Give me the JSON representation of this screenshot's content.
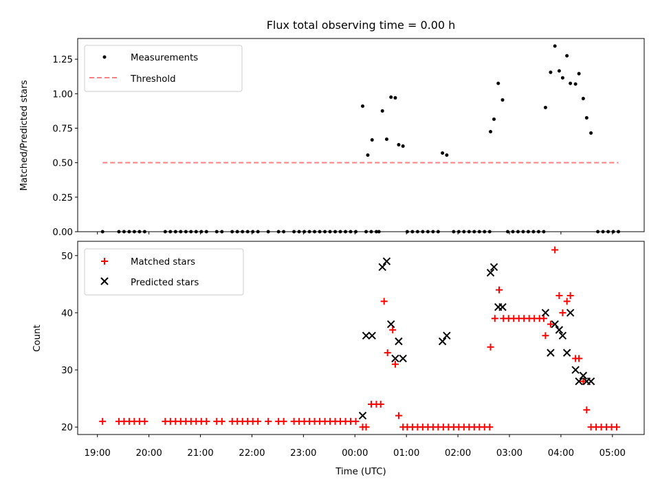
{
  "chart_data": [
    {
      "type": "scatter",
      "title": "Flux total observing time = 0.00 h",
      "xlabel": "",
      "ylabel": "Matched/Predicted stars",
      "ylim": [
        0,
        1.4
      ],
      "yticks": [
        "0.00",
        "0.25",
        "0.50",
        "0.75",
        "1.00",
        "1.25"
      ],
      "legend_position": "top-left",
      "series": [
        {
          "name": "Measurements",
          "marker": "dot",
          "color": "#000000",
          "points": [
            [
              "19:06",
              0
            ],
            [
              "19:25",
              0
            ],
            [
              "19:31",
              0
            ],
            [
              "19:37",
              0
            ],
            [
              "19:43",
              0
            ],
            [
              "19:49",
              0
            ],
            [
              "19:55",
              0
            ],
            [
              "20:19",
              0
            ],
            [
              "20:25",
              0
            ],
            [
              "20:31",
              0
            ],
            [
              "20:37",
              0
            ],
            [
              "20:43",
              0
            ],
            [
              "20:49",
              0
            ],
            [
              "20:55",
              0
            ],
            [
              "21:01",
              0
            ],
            [
              "21:07",
              0
            ],
            [
              "21:19",
              0
            ],
            [
              "21:25",
              0
            ],
            [
              "21:37",
              0
            ],
            [
              "21:43",
              0
            ],
            [
              "21:49",
              0
            ],
            [
              "21:55",
              0
            ],
            [
              "22:01",
              0
            ],
            [
              "22:07",
              0
            ],
            [
              "22:19",
              0
            ],
            [
              "22:31",
              0
            ],
            [
              "22:37",
              0
            ],
            [
              "22:49",
              0
            ],
            [
              "22:55",
              0
            ],
            [
              "23:01",
              0
            ],
            [
              "23:07",
              0
            ],
            [
              "23:13",
              0
            ],
            [
              "23:19",
              0
            ],
            [
              "23:25",
              0
            ],
            [
              "23:31",
              0
            ],
            [
              "23:37",
              0
            ],
            [
              "23:43",
              0
            ],
            [
              "23:49",
              0
            ],
            [
              "23:55",
              0
            ],
            [
              "00:01",
              0
            ],
            [
              "00:09",
              0.91
            ],
            [
              "00:13",
              0
            ],
            [
              "00:15",
              0.555
            ],
            [
              "00:19",
              0
            ],
            [
              "00:20",
              0.665
            ],
            [
              "00:25",
              0
            ],
            [
              "00:28",
              0
            ],
            [
              "00:32",
              0.875
            ],
            [
              "00:37",
              0.67
            ],
            [
              "00:42",
              0.975
            ],
            [
              "00:47",
              0.97
            ],
            [
              "00:51",
              0.63
            ],
            [
              "00:56",
              0.62
            ],
            [
              "01:01",
              0
            ],
            [
              "01:07",
              0
            ],
            [
              "01:13",
              0
            ],
            [
              "01:19",
              0
            ],
            [
              "01:25",
              0
            ],
            [
              "01:31",
              0
            ],
            [
              "01:37",
              0
            ],
            [
              "01:42",
              0.57
            ],
            [
              "01:47",
              0.555
            ],
            [
              "01:55",
              0
            ],
            [
              "02:01",
              0
            ],
            [
              "02:07",
              0
            ],
            [
              "02:13",
              0
            ],
            [
              "02:19",
              0
            ],
            [
              "02:25",
              0
            ],
            [
              "02:31",
              0
            ],
            [
              "02:37",
              0
            ],
            [
              "02:38",
              0.725
            ],
            [
              "02:42",
              0.815
            ],
            [
              "02:47",
              1.075
            ],
            [
              "02:52",
              0.955
            ],
            [
              "02:58",
              0
            ],
            [
              "03:04",
              0
            ],
            [
              "03:10",
              0
            ],
            [
              "03:16",
              0
            ],
            [
              "03:22",
              0
            ],
            [
              "03:28",
              0
            ],
            [
              "03:34",
              0
            ],
            [
              "03:40",
              0
            ],
            [
              "03:42",
              0.9
            ],
            [
              "03:48",
              1.155
            ],
            [
              "03:53",
              1.345
            ],
            [
              "03:58",
              1.165
            ],
            [
              "04:02",
              1.115
            ],
            [
              "04:07",
              1.275
            ],
            [
              "04:11",
              1.075
            ],
            [
              "04:17",
              1.07
            ],
            [
              "04:21",
              1.145
            ],
            [
              "04:26",
              0.965
            ],
            [
              "04:30",
              0.825
            ],
            [
              "04:35",
              0.715
            ],
            [
              "04:43",
              0
            ],
            [
              "04:49",
              0
            ],
            [
              "04:55",
              0
            ],
            [
              "05:01",
              0
            ],
            [
              "05:07",
              0
            ]
          ]
        },
        {
          "name": "Threshold",
          "marker": "dashed-line",
          "color": "#ff8080",
          "points": [
            [
              "19:06",
              0.5
            ],
            [
              "05:07",
              0.5
            ]
          ]
        }
      ]
    },
    {
      "type": "scatter",
      "title": "",
      "xlabel": "Time (UTC)",
      "ylabel": "Count",
      "ylim": [
        18.7,
        52.5
      ],
      "yticks": [
        "20",
        "30",
        "40",
        "50"
      ],
      "xticks": [
        "19:00",
        "20:00",
        "21:00",
        "22:00",
        "23:00",
        "00:00",
        "01:00",
        "02:00",
        "03:00",
        "04:00",
        "05:00"
      ],
      "legend_position": "top-left",
      "series": [
        {
          "name": "Matched stars",
          "marker": "plus",
          "color": "#ff0000",
          "points": [
            [
              "19:06",
              21
            ],
            [
              "19:25",
              21
            ],
            [
              "19:31",
              21
            ],
            [
              "19:37",
              21
            ],
            [
              "19:43",
              21
            ],
            [
              "19:49",
              21
            ],
            [
              "19:55",
              21
            ],
            [
              "20:19",
              21
            ],
            [
              "20:25",
              21
            ],
            [
              "20:31",
              21
            ],
            [
              "20:37",
              21
            ],
            [
              "20:43",
              21
            ],
            [
              "20:49",
              21
            ],
            [
              "20:55",
              21
            ],
            [
              "21:01",
              21
            ],
            [
              "21:07",
              21
            ],
            [
              "21:19",
              21
            ],
            [
              "21:25",
              21
            ],
            [
              "21:37",
              21
            ],
            [
              "21:43",
              21
            ],
            [
              "21:49",
              21
            ],
            [
              "21:55",
              21
            ],
            [
              "22:01",
              21
            ],
            [
              "22:07",
              21
            ],
            [
              "22:19",
              21
            ],
            [
              "22:31",
              21
            ],
            [
              "22:37",
              21
            ],
            [
              "22:49",
              21
            ],
            [
              "22:55",
              21
            ],
            [
              "23:01",
              21
            ],
            [
              "23:07",
              21
            ],
            [
              "23:13",
              21
            ],
            [
              "23:19",
              21
            ],
            [
              "23:25",
              21
            ],
            [
              "23:31",
              21
            ],
            [
              "23:37",
              21
            ],
            [
              "23:43",
              21
            ],
            [
              "23:49",
              21
            ],
            [
              "23:55",
              21
            ],
            [
              "00:01",
              21
            ],
            [
              "00:09",
              20
            ],
            [
              "00:13",
              20
            ],
            [
              "00:19",
              24
            ],
            [
              "00:25",
              24
            ],
            [
              "00:30",
              24
            ],
            [
              "00:34",
              42
            ],
            [
              "00:38",
              33
            ],
            [
              "00:44",
              37
            ],
            [
              "00:47",
              31
            ],
            [
              "00:51",
              22
            ],
            [
              "00:56",
              20
            ],
            [
              "01:01",
              20
            ],
            [
              "01:07",
              20
            ],
            [
              "01:13",
              20
            ],
            [
              "01:19",
              20
            ],
            [
              "01:25",
              20
            ],
            [
              "01:31",
              20
            ],
            [
              "01:37",
              20
            ],
            [
              "01:43",
              20
            ],
            [
              "01:49",
              20
            ],
            [
              "01:55",
              20
            ],
            [
              "02:01",
              20
            ],
            [
              "02:07",
              20
            ],
            [
              "02:13",
              20
            ],
            [
              "02:19",
              20
            ],
            [
              "02:25",
              20
            ],
            [
              "02:31",
              20
            ],
            [
              "02:37",
              20
            ],
            [
              "02:38",
              34
            ],
            [
              "02:43",
              39
            ],
            [
              "02:48",
              44
            ],
            [
              "02:53",
              39
            ],
            [
              "02:59",
              39
            ],
            [
              "03:05",
              39
            ],
            [
              "03:11",
              39
            ],
            [
              "03:17",
              39
            ],
            [
              "03:23",
              39
            ],
            [
              "03:29",
              39
            ],
            [
              "03:35",
              39
            ],
            [
              "03:40",
              39
            ],
            [
              "03:42",
              36
            ],
            [
              "03:48",
              38
            ],
            [
              "03:53",
              51
            ],
            [
              "03:58",
              43
            ],
            [
              "04:02",
              40
            ],
            [
              "04:07",
              42
            ],
            [
              "04:11",
              43
            ],
            [
              "04:17",
              32
            ],
            [
              "04:21",
              32
            ],
            [
              "04:26",
              28
            ],
            [
              "04:30",
              23
            ],
            [
              "04:35",
              20
            ],
            [
              "04:41",
              20
            ],
            [
              "04:47",
              20
            ],
            [
              "04:53",
              20
            ],
            [
              "04:59",
              20
            ],
            [
              "05:05",
              20
            ]
          ]
        },
        {
          "name": "Predicted stars",
          "marker": "x",
          "color": "#000000",
          "points": [
            [
              "00:09",
              22
            ],
            [
              "00:13",
              36
            ],
            [
              "00:20",
              36
            ],
            [
              "00:32",
              48
            ],
            [
              "00:37",
              49
            ],
            [
              "00:42",
              38
            ],
            [
              "00:47",
              32
            ],
            [
              "00:51",
              35
            ],
            [
              "00:56",
              32
            ],
            [
              "01:42",
              35
            ],
            [
              "01:47",
              36
            ],
            [
              "02:38",
              47
            ],
            [
              "02:42",
              48
            ],
            [
              "02:47",
              41
            ],
            [
              "02:52",
              41
            ],
            [
              "03:42",
              40
            ],
            [
              "03:48",
              33
            ],
            [
              "03:53",
              38
            ],
            [
              "03:58",
              37
            ],
            [
              "04:02",
              36
            ],
            [
              "04:07",
              33
            ],
            [
              "04:11",
              40
            ],
            [
              "04:17",
              30
            ],
            [
              "04:21",
              28
            ],
            [
              "04:26",
              29
            ],
            [
              "04:30",
              28
            ],
            [
              "04:35",
              28
            ]
          ]
        }
      ]
    }
  ]
}
